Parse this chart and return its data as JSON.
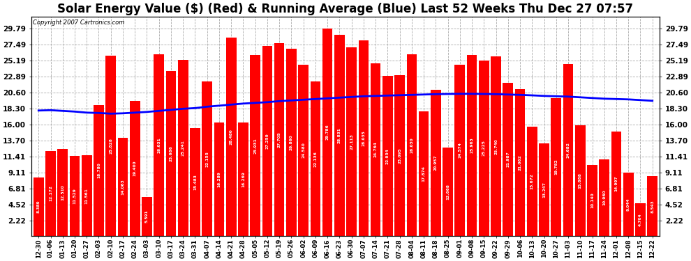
{
  "title": "Solar Energy Value ($) (Red) & Running Average (Blue) Last 52 Weeks Thu Dec 27 07:57",
  "copyright": "Copyright 2007 Cartronics.com",
  "bar_color": "#ff0000",
  "line_color": "#0000ff",
  "background_color": "#ffffff",
  "yticks": [
    2.22,
    4.52,
    6.81,
    9.11,
    11.41,
    13.7,
    16.0,
    18.3,
    20.6,
    22.89,
    25.19,
    27.49,
    29.79
  ],
  "xlabels": [
    "12-30",
    "01-06",
    "01-13",
    "01-20",
    "01-27",
    "02-03",
    "02-10",
    "02-17",
    "02-24",
    "03-03",
    "03-10",
    "03-17",
    "03-24",
    "03-31",
    "04-07",
    "04-14",
    "04-21",
    "04-28",
    "05-05",
    "05-12",
    "05-19",
    "05-26",
    "06-02",
    "06-09",
    "06-16",
    "06-23",
    "06-30",
    "07-07",
    "07-14",
    "07-21",
    "07-28",
    "08-04",
    "08-11",
    "08-18",
    "08-25",
    "09-01",
    "09-08",
    "09-15",
    "09-22",
    "09-29",
    "10-06",
    "10-13",
    "10-20",
    "10-27",
    "11-03",
    "11-10",
    "11-17",
    "11-24",
    "12-01",
    "12-08",
    "12-15",
    "12-22"
  ],
  "bar_values": [
    8.389,
    12.172,
    12.51,
    11.529,
    11.561,
    18.78,
    25.828,
    14.063,
    19.4,
    5.591,
    26.031,
    23.686,
    25.241,
    15.483,
    22.155,
    16.289,
    28.48,
    16.269,
    25.931,
    27.259,
    27.705,
    26.86,
    24.58,
    22.136,
    29.786,
    28.831,
    27.113,
    28.035,
    24.764,
    22.934,
    23.095,
    26.03,
    17.874,
    20.957,
    12.668,
    24.574,
    25.963,
    25.225,
    25.74,
    21.987,
    21.062,
    15.672,
    13.247,
    19.782,
    24.682,
    15.888,
    10.14,
    10.96,
    14.997,
    9.044,
    4.704,
    8.543
  ],
  "running_avg": [
    18.0,
    18.05,
    17.95,
    17.85,
    17.7,
    17.65,
    17.55,
    17.6,
    17.7,
    17.8,
    17.95,
    18.1,
    18.25,
    18.35,
    18.55,
    18.7,
    18.85,
    19.0,
    19.1,
    19.2,
    19.35,
    19.45,
    19.55,
    19.65,
    19.75,
    19.85,
    19.95,
    20.05,
    20.1,
    20.15,
    20.2,
    20.25,
    20.3,
    20.35,
    20.38,
    20.4,
    20.4,
    20.38,
    20.35,
    20.3,
    20.25,
    20.18,
    20.1,
    20.05,
    20.0,
    19.9,
    19.8,
    19.7,
    19.65,
    19.6,
    19.5,
    19.4
  ],
  "ylim": [
    0,
    31.5
  ],
  "title_fontsize": 12
}
